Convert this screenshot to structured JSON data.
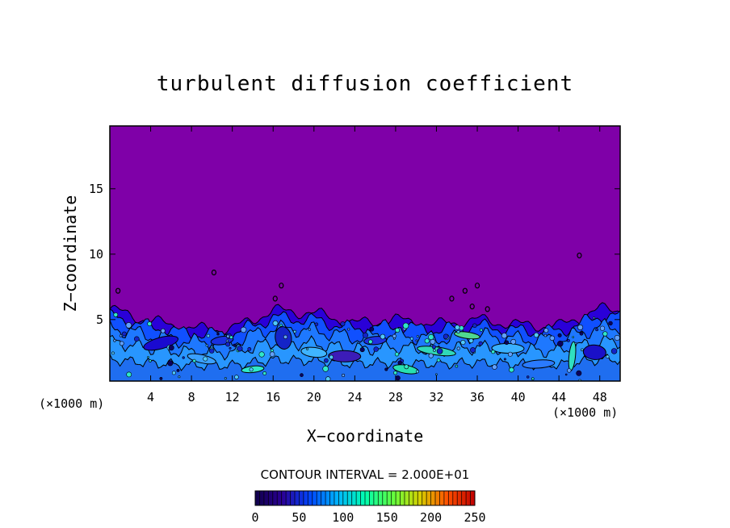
{
  "chart_data": {
    "type": "heatmap",
    "title": "turbulent diffusion coefficient",
    "xlabel": "X−coordinate",
    "ylabel": "Z−coordinate",
    "x_unit": "(×1000 m)",
    "y_unit": "(×1000 m)",
    "xlim": [
      0,
      50
    ],
    "ylim": [
      0.3,
      19.8
    ],
    "x_ticks": [
      4,
      8,
      12,
      16,
      20,
      24,
      28,
      32,
      36,
      40,
      44,
      48
    ],
    "y_ticks": [
      5,
      10,
      15
    ],
    "x_tick_labels": [
      "4",
      "8",
      "12",
      "16",
      "20",
      "24",
      "28",
      "32",
      "36",
      "40",
      "44",
      "48"
    ],
    "y_tick_labels": [
      "5",
      "10",
      "15"
    ],
    "contour_interval_text": "CONTOUR INTERVAL = 2.000E+01",
    "colorbar": {
      "min": 0,
      "max": 250,
      "ticks": [
        0,
        50,
        100,
        150,
        200,
        250
      ],
      "tick_labels": [
        "0",
        "50",
        "100",
        "150",
        "200",
        "250"
      ],
      "colors": [
        "#10004a",
        "#2a0096",
        "#0046ff",
        "#00b4ff",
        "#00ffb0",
        "#60ff40",
        "#d8d000",
        "#ff5000",
        "#c00000"
      ]
    },
    "background_color": "#7f00a8",
    "turbulent_layer_top_approx": [
      {
        "x": 0,
        "z": 5.8
      },
      {
        "x": 4,
        "z": 4.9
      },
      {
        "x": 8,
        "z": 4.3
      },
      {
        "x": 12,
        "z": 4.3
      },
      {
        "x": 16,
        "z": 5.7
      },
      {
        "x": 20,
        "z": 5.5
      },
      {
        "x": 24,
        "z": 4.7
      },
      {
        "x": 28,
        "z": 5.0
      },
      {
        "x": 32,
        "z": 4.6
      },
      {
        "x": 36,
        "z": 5.0
      },
      {
        "x": 40,
        "z": 4.6
      },
      {
        "x": 44,
        "z": 4.5
      },
      {
        "x": 48,
        "z": 5.8
      },
      {
        "x": 50,
        "z": 5.8
      }
    ]
  }
}
